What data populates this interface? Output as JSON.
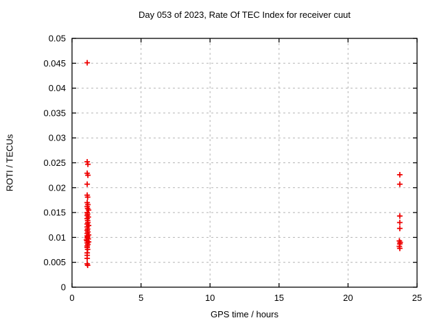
{
  "chart_data": {
    "type": "scatter",
    "title": "Day 053 of 2023, Rate Of TEC Index for receiver cuut",
    "xlabel": "GPS time / hours",
    "ylabel": "ROTI / TECUs",
    "xlim": [
      0,
      25
    ],
    "ylim": [
      0,
      0.05
    ],
    "xticks": [
      0,
      5,
      10,
      15,
      20,
      25
    ],
    "xtick_labels": [
      "0",
      "5",
      "10",
      "15",
      "20",
      "25"
    ],
    "yticks": [
      0,
      0.005,
      0.01,
      0.015,
      0.02,
      0.025,
      0.03,
      0.035,
      0.04,
      0.045,
      0.05
    ],
    "ytick_labels": [
      "0",
      "0.005",
      "0.01",
      "0.015",
      "0.02",
      "0.025",
      "0.03",
      "0.035",
      "0.04",
      "0.045",
      "0.05"
    ],
    "grid": true,
    "grid_style": "dashed",
    "legend": null,
    "marker": "plus",
    "marker_color": "#ee0000",
    "grid_color": "#b4b4b4",
    "axis_color": "#000000",
    "series": [
      {
        "name": "ROTI",
        "points": [
          [
            1.1,
            0.0451
          ],
          [
            1.1,
            0.0252
          ],
          [
            1.15,
            0.0247
          ],
          [
            1.1,
            0.0229
          ],
          [
            1.15,
            0.0225
          ],
          [
            1.1,
            0.0207
          ],
          [
            1.1,
            0.0185
          ],
          [
            1.13,
            0.0181
          ],
          [
            1.1,
            0.017
          ],
          [
            1.15,
            0.0166
          ],
          [
            1.1,
            0.0162
          ],
          [
            1.13,
            0.0158
          ],
          [
            1.2,
            0.0155
          ],
          [
            1.1,
            0.015
          ],
          [
            1.13,
            0.0147
          ],
          [
            1.1,
            0.0144
          ],
          [
            1.18,
            0.0141
          ],
          [
            1.1,
            0.0138
          ],
          [
            1.13,
            0.0134
          ],
          [
            1.15,
            0.013
          ],
          [
            1.1,
            0.0127
          ],
          [
            1.2,
            0.0124
          ],
          [
            1.1,
            0.0121
          ],
          [
            1.13,
            0.0117
          ],
          [
            1.1,
            0.0114
          ],
          [
            1.15,
            0.0111
          ],
          [
            1.1,
            0.0108
          ],
          [
            1.2,
            0.0105
          ],
          [
            1.1,
            0.0103
          ],
          [
            1.13,
            0.0101
          ],
          [
            1.1,
            0.0099
          ],
          [
            1.18,
            0.0097
          ],
          [
            1.05,
            0.0095
          ],
          [
            1.1,
            0.0093
          ],
          [
            1.2,
            0.0091
          ],
          [
            1.1,
            0.0089
          ],
          [
            1.15,
            0.0086
          ],
          [
            1.1,
            0.0083
          ],
          [
            1.1,
            0.008
          ],
          [
            1.13,
            0.0076
          ],
          [
            1.1,
            0.0069
          ],
          [
            1.1,
            0.0064
          ],
          [
            1.1,
            0.0058
          ],
          [
            1.1,
            0.0047
          ],
          [
            1.13,
            0.0044
          ],
          [
            23.75,
            0.0226
          ],
          [
            23.75,
            0.0207
          ],
          [
            23.75,
            0.0143
          ],
          [
            23.75,
            0.013
          ],
          [
            23.75,
            0.0118
          ],
          [
            23.72,
            0.0093
          ],
          [
            23.78,
            0.009
          ],
          [
            23.75,
            0.0087
          ],
          [
            23.72,
            0.0082
          ],
          [
            23.75,
            0.0078
          ]
        ]
      }
    ]
  }
}
